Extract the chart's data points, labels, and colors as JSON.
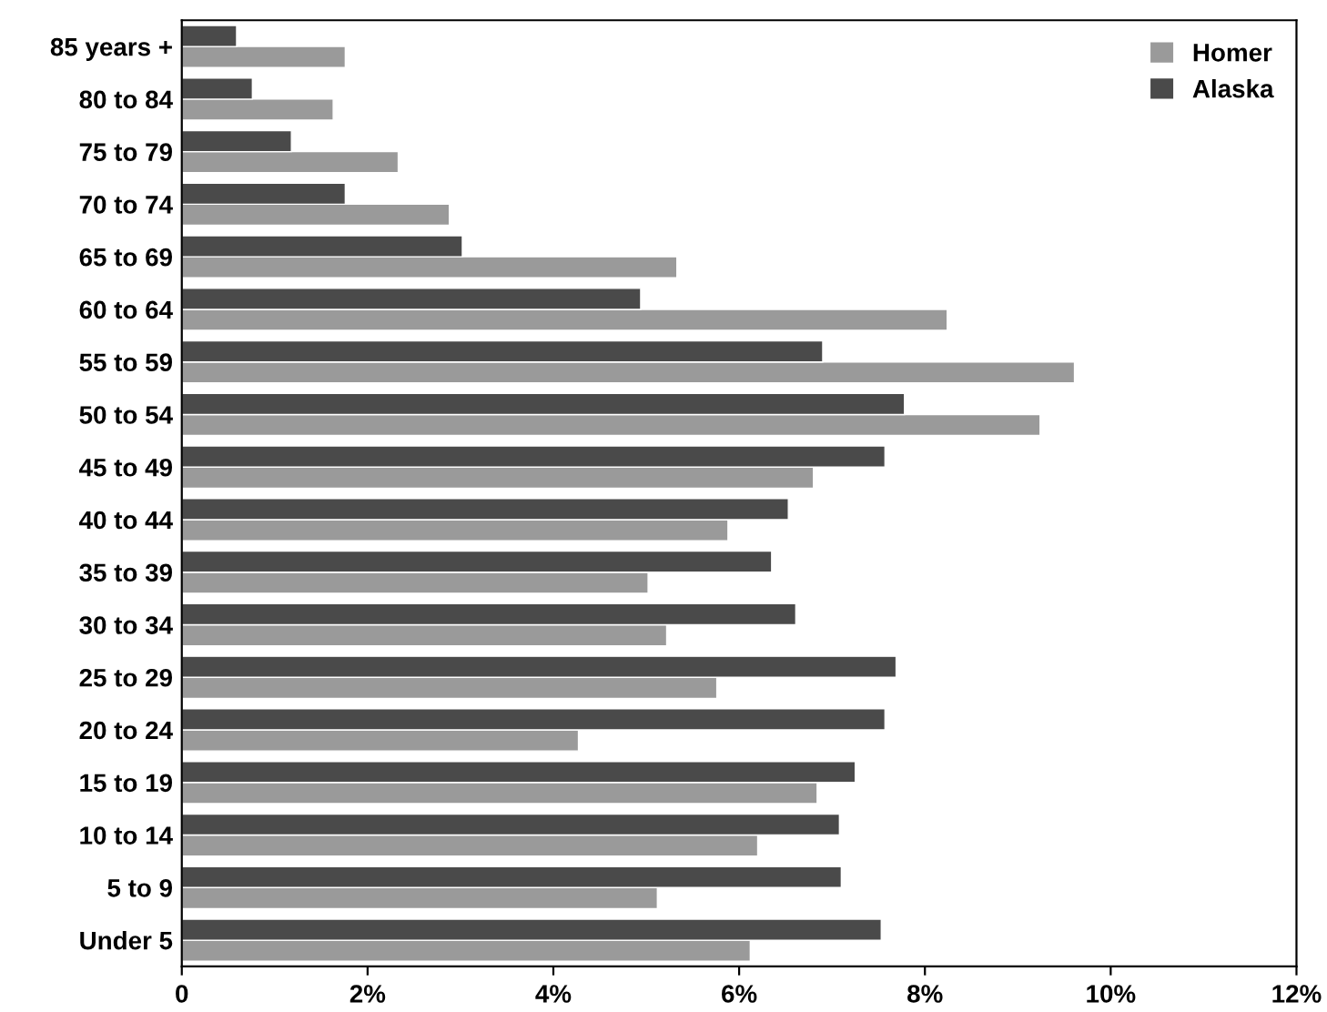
{
  "chart_data": {
    "type": "bar",
    "orientation": "horizontal",
    "categories": [
      "85 years +",
      "80 to 84",
      "75 to 79",
      "70 to 74",
      "65 to 69",
      "60 to 64",
      "55 to 59",
      "50 to 54",
      "45 to 49",
      "40 to 44",
      "35 to 39",
      "30 to 34",
      "25 to 29",
      "20 to 24",
      "15 to 19",
      "10 to 14",
      "5 to 9",
      "Under 5"
    ],
    "series": [
      {
        "name": "Homer",
        "color": "#9a9a9a",
        "values": [
          1.76,
          1.63,
          2.33,
          2.88,
          5.33,
          8.24,
          9.61,
          9.24,
          6.8,
          5.88,
          5.02,
          5.22,
          5.76,
          4.27,
          6.84,
          6.2,
          5.12,
          6.12
        ]
      },
      {
        "name": "Alaska",
        "color": "#4a4a4a",
        "values": [
          0.59,
          0.76,
          1.18,
          1.76,
          3.02,
          4.94,
          6.9,
          7.78,
          7.57,
          6.53,
          6.35,
          6.61,
          7.69,
          7.57,
          7.25,
          7.08,
          7.1,
          7.53
        ]
      }
    ],
    "xlim": [
      0,
      12
    ],
    "xticks": [
      0,
      {
        "value": 2,
        "label": "2%"
      },
      {
        "value": 4,
        "label": "4%"
      },
      {
        "value": 6,
        "label": "6%"
      },
      {
        "value": 8,
        "label": "8%"
      },
      {
        "value": 10,
        "label": "10%"
      },
      {
        "value": 12,
        "label": "12%"
      }
    ],
    "grid": false,
    "legend": "top right"
  }
}
